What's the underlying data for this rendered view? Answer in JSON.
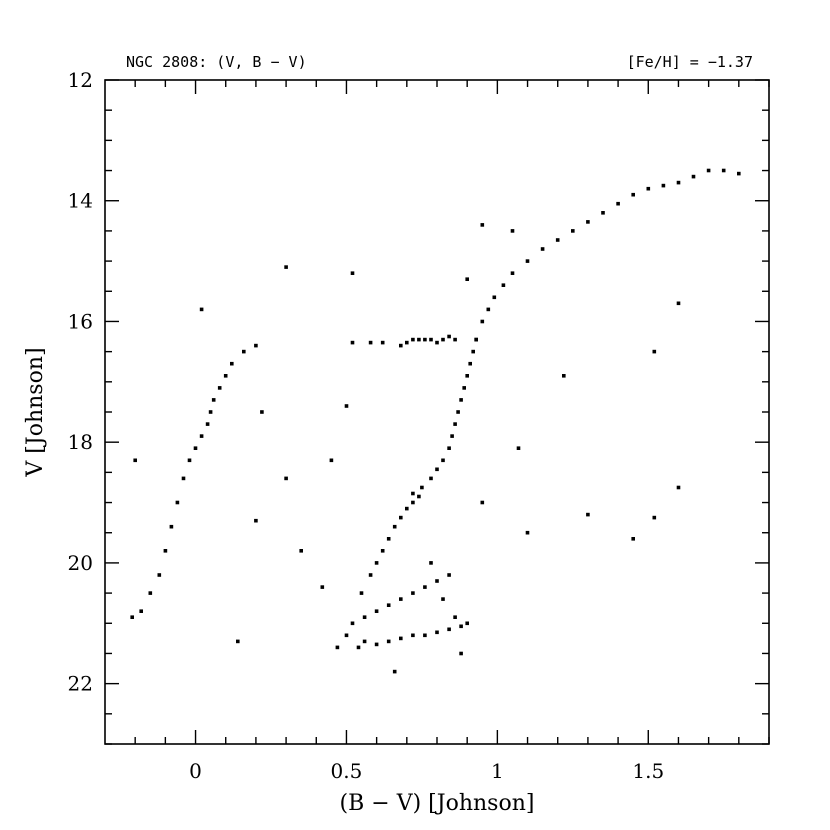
{
  "chart_data": {
    "type": "scatter",
    "title_left": "NGC 2808:  (V, B − V)",
    "title_right": "[Fe/H] = −1.37",
    "xlabel": "(B − V) [Johnson]",
    "ylabel": "V [Johnson]",
    "xlim": [
      -0.3,
      1.9
    ],
    "ylim": [
      23,
      12
    ],
    "y_inverted": true,
    "x_ticks": [
      {
        "value": 0,
        "label": "0"
      },
      {
        "value": 0.5,
        "label": "0.5"
      },
      {
        "value": 1,
        "label": "1"
      },
      {
        "value": 1.5,
        "label": "1.5"
      }
    ],
    "y_ticks": [
      {
        "value": 12,
        "label": "12"
      },
      {
        "value": 14,
        "label": "14"
      },
      {
        "value": 16,
        "label": "16"
      },
      {
        "value": 18,
        "label": "18"
      },
      {
        "value": 20,
        "label": "20"
      },
      {
        "value": 22,
        "label": "22"
      }
    ],
    "x_minor_step": 0.1,
    "y_minor_step": 0.5,
    "grid": false,
    "marker_color": "#000000",
    "series": [
      {
        "region": "main-sequence",
        "points": [
          [
            0.54,
            21.4
          ],
          [
            0.56,
            21.3
          ],
          [
            0.6,
            21.35
          ],
          [
            0.64,
            21.3
          ],
          [
            0.68,
            21.25
          ],
          [
            0.72,
            21.2
          ],
          [
            0.76,
            21.2
          ],
          [
            0.8,
            21.15
          ],
          [
            0.84,
            21.1
          ],
          [
            0.88,
            21.05
          ],
          [
            0.52,
            21.0
          ],
          [
            0.56,
            20.9
          ],
          [
            0.6,
            20.8
          ],
          [
            0.64,
            20.7
          ],
          [
            0.68,
            20.6
          ],
          [
            0.72,
            20.5
          ],
          [
            0.76,
            20.4
          ],
          [
            0.8,
            20.3
          ],
          [
            0.84,
            20.2
          ],
          [
            0.55,
            20.5
          ],
          [
            0.58,
            20.2
          ],
          [
            0.6,
            20.0
          ],
          [
            0.62,
            19.8
          ],
          [
            0.64,
            19.6
          ],
          [
            0.66,
            19.4
          ],
          [
            0.68,
            19.25
          ],
          [
            0.7,
            19.1
          ],
          [
            0.72,
            19.0
          ],
          [
            0.74,
            18.9
          ],
          [
            0.78,
            20.0
          ],
          [
            0.82,
            20.6
          ],
          [
            0.86,
            20.9
          ],
          [
            0.9,
            21.0
          ],
          [
            0.5,
            21.2
          ],
          [
            0.47,
            21.4
          ]
        ]
      },
      {
        "region": "subgiant-branch",
        "points": [
          [
            0.72,
            18.85
          ],
          [
            0.75,
            18.75
          ],
          [
            0.78,
            18.6
          ],
          [
            0.8,
            18.45
          ],
          [
            0.82,
            18.3
          ],
          [
            0.84,
            18.1
          ],
          [
            0.85,
            17.9
          ],
          [
            0.86,
            17.7
          ],
          [
            0.87,
            17.5
          ],
          [
            0.88,
            17.3
          ],
          [
            0.89,
            17.1
          ],
          [
            0.9,
            16.9
          ],
          [
            0.91,
            16.7
          ],
          [
            0.92,
            16.5
          ],
          [
            0.93,
            16.3
          ]
        ]
      },
      {
        "region": "red-giant-branch",
        "points": [
          [
            0.93,
            16.3
          ],
          [
            0.95,
            16.0
          ],
          [
            0.97,
            15.8
          ],
          [
            0.99,
            15.6
          ],
          [
            1.02,
            15.4
          ],
          [
            1.05,
            15.2
          ],
          [
            1.1,
            15.0
          ],
          [
            1.15,
            14.8
          ],
          [
            1.2,
            14.65
          ],
          [
            1.25,
            14.5
          ],
          [
            1.3,
            14.35
          ],
          [
            1.35,
            14.2
          ],
          [
            1.4,
            14.05
          ],
          [
            1.45,
            13.9
          ],
          [
            1.5,
            13.8
          ],
          [
            1.55,
            13.75
          ],
          [
            1.6,
            13.7
          ],
          [
            1.65,
            13.6
          ],
          [
            1.7,
            13.5
          ],
          [
            1.75,
            13.5
          ],
          [
            1.8,
            13.55
          ]
        ]
      },
      {
        "region": "red-horizontal-branch",
        "points": [
          [
            0.68,
            16.4
          ],
          [
            0.7,
            16.35
          ],
          [
            0.72,
            16.3
          ],
          [
            0.74,
            16.3
          ],
          [
            0.76,
            16.3
          ],
          [
            0.78,
            16.3
          ],
          [
            0.8,
            16.35
          ],
          [
            0.82,
            16.3
          ],
          [
            0.84,
            16.25
          ],
          [
            0.86,
            16.3
          ],
          [
            0.62,
            16.35
          ],
          [
            0.58,
            16.35
          ],
          [
            0.52,
            16.35
          ]
        ]
      },
      {
        "region": "blue-horizontal-branch",
        "points": [
          [
            0.2,
            16.4
          ],
          [
            0.16,
            16.5
          ],
          [
            0.12,
            16.7
          ],
          [
            0.1,
            16.9
          ],
          [
            0.08,
            17.1
          ],
          [
            0.06,
            17.3
          ],
          [
            0.05,
            17.5
          ],
          [
            0.04,
            17.7
          ],
          [
            0.02,
            17.9
          ],
          [
            0.0,
            18.1
          ],
          [
            -0.02,
            18.3
          ],
          [
            -0.04,
            18.6
          ],
          [
            -0.06,
            19.0
          ],
          [
            -0.08,
            19.4
          ],
          [
            -0.1,
            19.8
          ],
          [
            -0.12,
            20.2
          ],
          [
            -0.15,
            20.5
          ],
          [
            -0.18,
            20.8
          ],
          [
            -0.21,
            20.9
          ]
        ]
      },
      {
        "region": "field-scatter",
        "points": [
          [
            0.3,
            15.1
          ],
          [
            0.52,
            15.2
          ],
          [
            0.95,
            14.4
          ],
          [
            1.05,
            14.5
          ],
          [
            1.6,
            15.7
          ],
          [
            1.52,
            16.5
          ],
          [
            1.22,
            16.9
          ],
          [
            1.07,
            18.1
          ],
          [
            1.6,
            18.75
          ],
          [
            1.52,
            19.25
          ],
          [
            1.45,
            19.6
          ],
          [
            0.95,
            19.0
          ],
          [
            1.1,
            19.5
          ],
          [
            0.45,
            18.3
          ],
          [
            0.3,
            18.6
          ],
          [
            0.2,
            19.3
          ],
          [
            0.35,
            19.8
          ],
          [
            0.42,
            20.4
          ],
          [
            0.14,
            21.3
          ],
          [
            0.66,
            21.8
          ],
          [
            0.88,
            21.5
          ],
          [
            1.3,
            19.2
          ],
          [
            0.5,
            17.4
          ],
          [
            0.22,
            17.5
          ],
          [
            0.02,
            15.8
          ],
          [
            -0.2,
            18.3
          ],
          [
            0.9,
            15.3
          ]
        ]
      }
    ]
  }
}
